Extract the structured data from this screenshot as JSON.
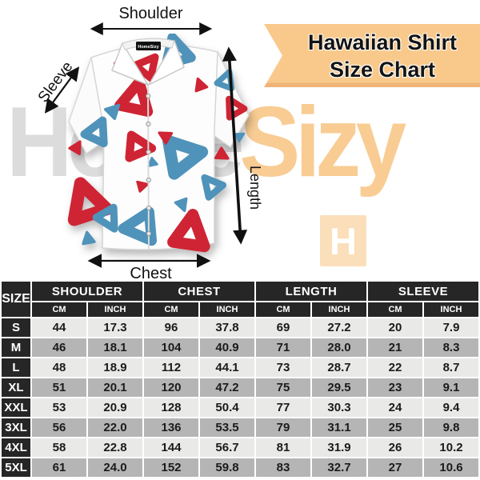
{
  "title_banner": {
    "line1": "Hawaiian Shirt",
    "line2": "Size Chart"
  },
  "watermark": {
    "gray_part": "Home",
    "accent_part": "Sizy",
    "logo_letter": "H"
  },
  "shirt": {
    "collar_tag": "HomeSizy"
  },
  "labels": {
    "shoulder": "Shoulder",
    "sleeve": "Sleeve",
    "length": "Length",
    "chest": "Chest"
  },
  "table": {
    "size_header": "SIZE",
    "groups": [
      "SHOULDER",
      "CHEST",
      "LENGTH",
      "SLEEVE"
    ],
    "units": [
      "CM",
      "INCH"
    ],
    "rows": [
      {
        "size": "S",
        "values": [
          "44",
          "17.3",
          "96",
          "37.8",
          "69",
          "27.2",
          "20",
          "7.9"
        ]
      },
      {
        "size": "M",
        "values": [
          "46",
          "18.1",
          "104",
          "40.9",
          "71",
          "28.0",
          "21",
          "8.3"
        ]
      },
      {
        "size": "L",
        "values": [
          "48",
          "18.9",
          "112",
          "44.1",
          "73",
          "28.7",
          "22",
          "8.7"
        ]
      },
      {
        "size": "XL",
        "values": [
          "51",
          "20.1",
          "120",
          "47.2",
          "75",
          "29.5",
          "23",
          "9.1"
        ]
      },
      {
        "size": "XXL",
        "values": [
          "53",
          "20.9",
          "128",
          "50.4",
          "77",
          "30.3",
          "24",
          "9.4"
        ]
      },
      {
        "size": "3XL",
        "values": [
          "56",
          "22.0",
          "136",
          "53.5",
          "79",
          "31.1",
          "25",
          "9.8"
        ]
      },
      {
        "size": "4XL",
        "values": [
          "58",
          "22.8",
          "144",
          "56.7",
          "81",
          "31.9",
          "26",
          "10.2"
        ]
      },
      {
        "size": "5XL",
        "values": [
          "61",
          "24.0",
          "152",
          "59.8",
          "83",
          "32.7",
          "27",
          "10.6"
        ]
      }
    ]
  },
  "colors": {
    "banner_bg": "#f9c98c",
    "watermark_gray": "#dcdcdc",
    "watermark_peach": "#f8cc93",
    "logo_bg": "#fbdfbb",
    "table_header_bg": "#262626",
    "row_light": "#e9e9e7",
    "row_gray": "#b5b5b5",
    "pattern_red": "#cf2434",
    "pattern_blue": "#4f93ba"
  },
  "chart_data": {
    "type": "table",
    "title": "Hawaiian Shirt Size Chart",
    "columns": [
      "SIZE",
      "SHOULDER CM",
      "SHOULDER INCH",
      "CHEST CM",
      "CHEST INCH",
      "LENGTH CM",
      "LENGTH INCH",
      "SLEEVE CM",
      "SLEEVE INCH"
    ],
    "rows": [
      [
        "S",
        44,
        17.3,
        96,
        37.8,
        69,
        27.2,
        20,
        7.9
      ],
      [
        "M",
        46,
        18.1,
        104,
        40.9,
        71,
        28.0,
        21,
        8.3
      ],
      [
        "L",
        48,
        18.9,
        112,
        44.1,
        73,
        28.7,
        22,
        8.7
      ],
      [
        "XL",
        51,
        20.1,
        120,
        47.2,
        75,
        29.5,
        23,
        9.1
      ],
      [
        "XXL",
        53,
        20.9,
        128,
        50.4,
        77,
        30.3,
        24,
        9.4
      ],
      [
        "3XL",
        56,
        22.0,
        136,
        53.5,
        79,
        31.1,
        25,
        9.8
      ],
      [
        "4XL",
        58,
        22.8,
        144,
        56.7,
        81,
        31.9,
        26,
        10.2
      ],
      [
        "5XL",
        61,
        24.0,
        152,
        59.8,
        83,
        32.7,
        27,
        10.6
      ]
    ]
  }
}
